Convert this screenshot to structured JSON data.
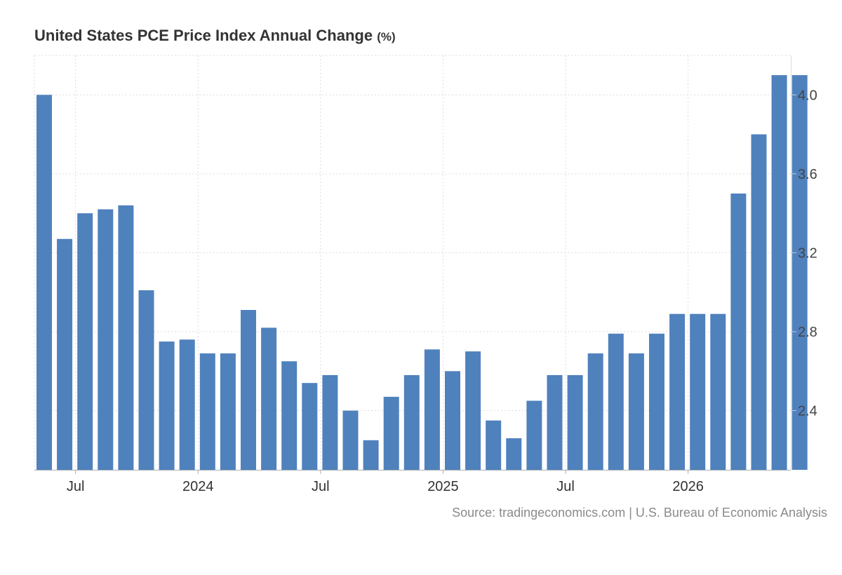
{
  "chart_data": {
    "type": "bar",
    "title": "United States PCE Price Index Annual Change",
    "unit": "(%)",
    "source": "Source: tradingeconomics.com | U.S. Bureau of Economic Analysis",
    "color": "#4f81bd",
    "grid": true,
    "ylim": [
      2.1,
      4.2
    ],
    "yticks": [
      2.4,
      2.8,
      3.2,
      3.6,
      4.0
    ],
    "yaxis_side": "right",
    "x_tick_labels": [
      {
        "label": "Jul",
        "at": "2023-07"
      },
      {
        "label": "2024",
        "at": "2024-01"
      },
      {
        "label": "Jul",
        "at": "2024-07"
      },
      {
        "label": "2025",
        "at": "2025-01"
      },
      {
        "label": "Jul",
        "at": "2025-07"
      },
      {
        "label": "2026",
        "at": "2026-01"
      }
    ],
    "categories": [
      "2023-05",
      "2023-06",
      "2023-07",
      "2023-08",
      "2023-09",
      "2023-10",
      "2023-11",
      "2023-12",
      "2024-01",
      "2024-02",
      "2024-03",
      "2024-04",
      "2024-05",
      "2024-06",
      "2024-07",
      "2024-08",
      "2024-09",
      "2024-10",
      "2024-11",
      "2024-12",
      "2025-01",
      "2025-02",
      "2025-03",
      "2025-04",
      "2025-05",
      "2025-06",
      "2025-07",
      "2025-08",
      "2025-09",
      "2025-10",
      "2025-11",
      "2025-12",
      "2026-01",
      "2026-02",
      "2026-03",
      "2026-04",
      "2026-05",
      "2026-06"
    ],
    "values": [
      4.0,
      3.27,
      3.4,
      3.42,
      3.44,
      3.01,
      2.75,
      2.76,
      2.69,
      2.69,
      2.91,
      2.82,
      2.65,
      2.54,
      2.58,
      2.4,
      2.25,
      2.47,
      2.58,
      2.71,
      2.6,
      2.7,
      2.35,
      2.26,
      2.45,
      2.58,
      2.58,
      2.69,
      2.79,
      2.69,
      2.79,
      2.89,
      2.89,
      2.89,
      3.5,
      3.8,
      4.1,
      4.1
    ]
  }
}
